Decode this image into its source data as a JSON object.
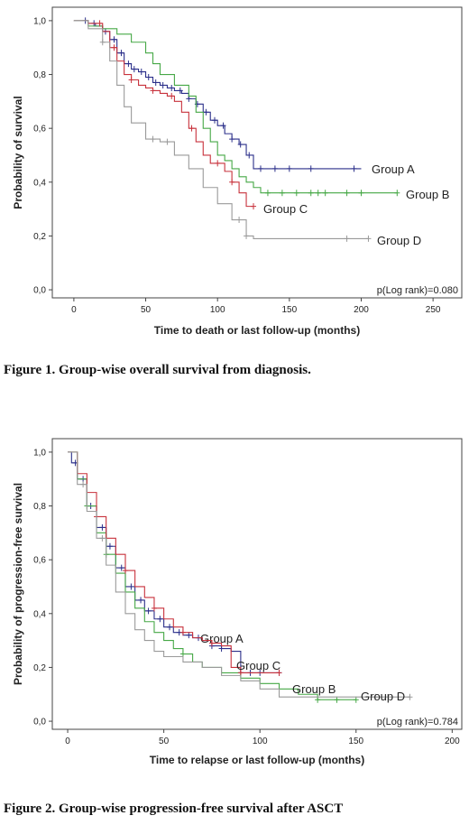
{
  "captions": {
    "figure1": "Figure 1. Group-wise overall survival from diagnosis.",
    "figure2": "Figure 2. Group-wise progression-free survival after ASCT"
  },
  "colors": {
    "Group A": "#2b2f8a",
    "Group B": "#46a846",
    "Group C": "#c8323c",
    "Group D": "#9a9a9a"
  },
  "chart_data": [
    {
      "type": "line",
      "title": "",
      "xlabel": "Time to death or last follow-up (months)",
      "ylabel": "Probability of survival",
      "xlim": [
        -15,
        270
      ],
      "ylim": [
        -0.03,
        1.05
      ],
      "xticks": [
        "0",
        "50",
        "100",
        "150",
        "200",
        "250"
      ],
      "xtick_values": [
        0,
        50,
        100,
        150,
        200,
        250
      ],
      "yticks": [
        "0,0",
        "0,2",
        "0,4",
        "0,6",
        "0,8",
        "1,0"
      ],
      "ytick_values": [
        0,
        0.2,
        0.4,
        0.6,
        0.8,
        1.0
      ],
      "annotation": "p(Log rank)=0.080",
      "series": [
        {
          "name": "Group A",
          "x": [
            0,
            10,
            15,
            20,
            25,
            30,
            35,
            40,
            45,
            50,
            55,
            60,
            65,
            70,
            75,
            80,
            85,
            90,
            95,
            100,
            105,
            110,
            115,
            120,
            125,
            200
          ],
          "y": [
            1.0,
            0.99,
            0.98,
            0.96,
            0.93,
            0.88,
            0.84,
            0.82,
            0.81,
            0.79,
            0.77,
            0.76,
            0.75,
            0.74,
            0.73,
            0.71,
            0.69,
            0.66,
            0.63,
            0.61,
            0.58,
            0.56,
            0.54,
            0.5,
            0.45,
            0.45
          ],
          "censors_x": [
            8,
            14,
            22,
            28,
            33,
            38,
            42,
            47,
            52,
            57,
            62,
            68,
            74,
            80,
            86,
            92,
            98,
            104,
            110,
            116,
            122,
            130,
            140,
            150,
            165,
            195
          ]
        },
        {
          "name": "Group B",
          "x": [
            0,
            10,
            20,
            30,
            40,
            50,
            55,
            60,
            70,
            80,
            85,
            90,
            95,
            100,
            105,
            110,
            115,
            120,
            125,
            130,
            225
          ],
          "y": [
            1.0,
            0.98,
            0.97,
            0.95,
            0.92,
            0.88,
            0.84,
            0.8,
            0.76,
            0.72,
            0.66,
            0.6,
            0.55,
            0.5,
            0.48,
            0.45,
            0.42,
            0.4,
            0.38,
            0.36,
            0.36
          ],
          "censors_x": [
            135,
            145,
            155,
            165,
            170,
            175,
            190,
            200,
            225
          ]
        },
        {
          "name": "Group C",
          "x": [
            0,
            10,
            20,
            25,
            30,
            35,
            40,
            45,
            50,
            55,
            60,
            65,
            70,
            75,
            80,
            85,
            90,
            95,
            100,
            105,
            110,
            115,
            120,
            125
          ],
          "y": [
            1.0,
            0.99,
            0.96,
            0.9,
            0.85,
            0.8,
            0.78,
            0.76,
            0.75,
            0.74,
            0.73,
            0.72,
            0.7,
            0.66,
            0.6,
            0.55,
            0.5,
            0.47,
            0.47,
            0.44,
            0.4,
            0.36,
            0.31,
            0.31
          ],
          "censors_x": [
            18,
            28,
            40,
            55,
            68,
            82,
            100,
            110,
            125
          ]
        },
        {
          "name": "Group D",
          "x": [
            0,
            10,
            20,
            25,
            30,
            35,
            40,
            50,
            60,
            70,
            80,
            90,
            100,
            110,
            115,
            120,
            125,
            205
          ],
          "y": [
            1.0,
            0.97,
            0.92,
            0.85,
            0.76,
            0.68,
            0.62,
            0.56,
            0.55,
            0.5,
            0.45,
            0.38,
            0.32,
            0.26,
            0.26,
            0.2,
            0.19,
            0.19
          ],
          "censors_x": [
            20,
            55,
            65,
            115,
            120,
            190,
            205
          ]
        }
      ],
      "legend": "labels at line ends"
    },
    {
      "type": "line",
      "title": "",
      "xlabel": "Time to relapse or last follow-up (months)",
      "ylabel": "Probability of progression-free survival",
      "xlim": [
        -8,
        205
      ],
      "ylim": [
        -0.03,
        1.05
      ],
      "xticks": [
        "0",
        "50",
        "100",
        "150",
        "200"
      ],
      "xtick_values": [
        0,
        50,
        100,
        150,
        200
      ],
      "yticks": [
        "0,0",
        "0,2",
        "0,4",
        "0,6",
        "0,8",
        "1,0"
      ],
      "ytick_values": [
        0,
        0.2,
        0.4,
        0.6,
        0.8,
        1.0
      ],
      "annotation": "p(Log rank)=0.784",
      "series": [
        {
          "name": "Group A",
          "x": [
            0,
            2,
            5,
            10,
            15,
            20,
            25,
            30,
            35,
            40,
            45,
            50,
            55,
            60,
            65,
            70,
            75,
            80,
            85,
            90,
            95,
            110
          ],
          "y": [
            1.0,
            0.96,
            0.9,
            0.8,
            0.72,
            0.65,
            0.57,
            0.5,
            0.45,
            0.41,
            0.38,
            0.35,
            0.33,
            0.32,
            0.31,
            0.3,
            0.28,
            0.27,
            0.26,
            0.18,
            0.18,
            0.18
          ],
          "censors_x": [
            4,
            8,
            12,
            18,
            22,
            28,
            33,
            38,
            42,
            48,
            53,
            58,
            63,
            68,
            75,
            80,
            90,
            95,
            100,
            110
          ]
        },
        {
          "name": "Group B",
          "x": [
            0,
            5,
            10,
            15,
            20,
            25,
            30,
            35,
            40,
            45,
            50,
            55,
            60,
            65,
            70,
            80,
            90,
            100,
            110,
            120,
            130,
            140,
            150
          ],
          "y": [
            1.0,
            0.9,
            0.8,
            0.7,
            0.62,
            0.55,
            0.48,
            0.42,
            0.37,
            0.33,
            0.3,
            0.27,
            0.25,
            0.22,
            0.2,
            0.18,
            0.16,
            0.14,
            0.12,
            0.1,
            0.08,
            0.08,
            0.08
          ],
          "censors_x": [
            10,
            20,
            30,
            60,
            130,
            140,
            150
          ]
        },
        {
          "name": "Group C",
          "x": [
            0,
            5,
            10,
            15,
            20,
            25,
            30,
            35,
            40,
            45,
            50,
            55,
            60,
            65,
            70,
            75,
            80,
            85,
            90,
            110
          ],
          "y": [
            1.0,
            0.92,
            0.85,
            0.76,
            0.68,
            0.62,
            0.56,
            0.5,
            0.46,
            0.42,
            0.38,
            0.35,
            0.33,
            0.31,
            0.3,
            0.29,
            0.28,
            0.2,
            0.18,
            0.18
          ],
          "censors_x": [
            15,
            30,
            45,
            60,
            75,
            90,
            110
          ]
        },
        {
          "name": "Group D",
          "x": [
            0,
            5,
            10,
            15,
            20,
            25,
            30,
            35,
            40,
            45,
            50,
            60,
            70,
            80,
            90,
            100,
            110,
            130,
            150,
            160,
            178
          ],
          "y": [
            1.0,
            0.88,
            0.78,
            0.68,
            0.58,
            0.48,
            0.4,
            0.34,
            0.3,
            0.26,
            0.24,
            0.22,
            0.2,
            0.17,
            0.15,
            0.12,
            0.09,
            0.09,
            0.09,
            0.09,
            0.09
          ],
          "censors_x": [
            8,
            18,
            160,
            178
          ]
        }
      ],
      "legend": "labels at line ends"
    }
  ]
}
